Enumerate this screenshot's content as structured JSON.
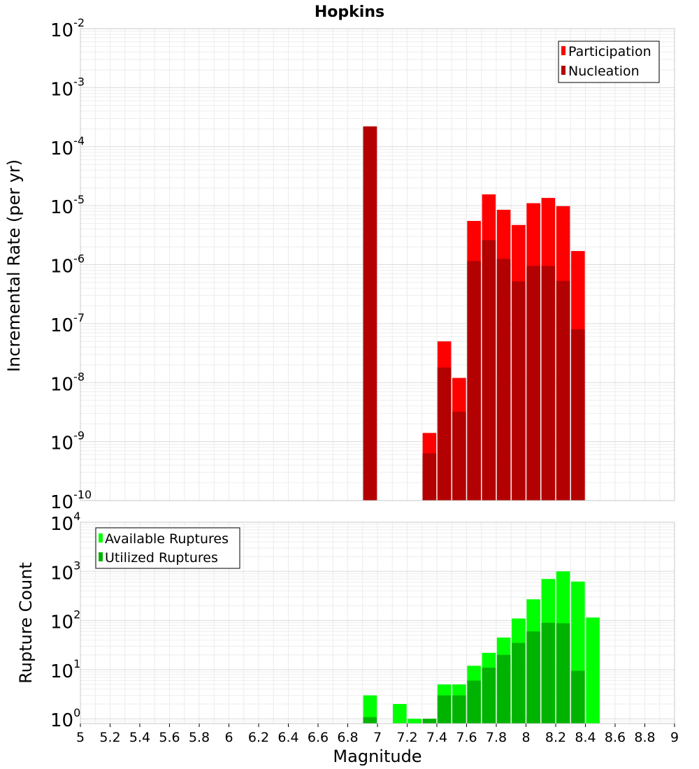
{
  "chart_data": [
    {
      "type": "bar",
      "title": "Hopkins",
      "xlabel": "",
      "ylabel": "Incremental Rate (per yr)",
      "yscale": "log",
      "ylim": [
        1e-10,
        0.01
      ],
      "xlim": [
        5,
        9
      ],
      "grid": true,
      "legend": "top-right",
      "y_ticks": [
        {
          "base": "10",
          "exp": "-10",
          "value": 1e-10
        },
        {
          "base": "10",
          "exp": "-9",
          "value": 1e-09
        },
        {
          "base": "10",
          "exp": "-8",
          "value": 1e-08
        },
        {
          "base": "10",
          "exp": "-7",
          "value": 1e-07
        },
        {
          "base": "10",
          "exp": "-6",
          "value": 1e-06
        },
        {
          "base": "10",
          "exp": "-5",
          "value": 1e-05
        },
        {
          "base": "10",
          "exp": "-4",
          "value": 0.0001
        },
        {
          "base": "10",
          "exp": "-3",
          "value": 0.001
        },
        {
          "base": "10",
          "exp": "-2",
          "value": 0.01
        }
      ],
      "series": [
        {
          "name": "Participation",
          "color": "#ff0000",
          "x": [
            6.95,
            7.35,
            7.45,
            7.55,
            7.65,
            7.75,
            7.85,
            7.95,
            8.05,
            8.15,
            8.25,
            8.35
          ],
          "values": [
            0.00022,
            1.4e-09,
            5e-08,
            1.2e-08,
            5.5e-06,
            1.55e-05,
            8.5e-06,
            4.7e-06,
            1.1e-05,
            1.35e-05,
            9.8e-06,
            1.7e-06
          ]
        },
        {
          "name": "Nucleation",
          "color": "#b30000",
          "x": [
            6.95,
            7.35,
            7.45,
            7.55,
            7.65,
            7.75,
            7.85,
            7.95,
            8.05,
            8.15,
            8.25,
            8.35
          ],
          "values": [
            0.00022,
            6.3e-10,
            1.8e-08,
            3.2e-09,
            1.15e-06,
            2.6e-06,
            1.25e-06,
            5.2e-07,
            9.5e-07,
            9.5e-07,
            5.3e-07,
            8e-08
          ]
        }
      ]
    },
    {
      "type": "bar",
      "title": "",
      "xlabel": "Magnitude",
      "ylabel": "Rupture Count",
      "yscale": "log",
      "ylim": [
        0.8,
        10000
      ],
      "xlim": [
        5,
        9
      ],
      "grid": true,
      "legend": "top-left",
      "x_ticks": [
        "5",
        "5.2",
        "5.4",
        "5.6",
        "5.8",
        "6",
        "6.2",
        "6.4",
        "6.6",
        "6.8",
        "7",
        "7.2",
        "7.4",
        "7.6",
        "7.8",
        "8",
        "8.2",
        "8.4",
        "8.6",
        "8.8",
        "9"
      ],
      "y_ticks": [
        {
          "base": "10",
          "exp": "0",
          "value": 1
        },
        {
          "base": "10",
          "exp": "1",
          "value": 10
        },
        {
          "base": "10",
          "exp": "2",
          "value": 100
        },
        {
          "base": "10",
          "exp": "3",
          "value": 1000
        },
        {
          "base": "10",
          "exp": "4",
          "value": 10000
        }
      ],
      "series": [
        {
          "name": "Available Ruptures",
          "color": "#00ff00",
          "x": [
            6.95,
            7.15,
            7.25,
            7.35,
            7.45,
            7.55,
            7.65,
            7.75,
            7.85,
            7.95,
            8.05,
            8.15,
            8.25,
            8.35,
            8.45
          ],
          "values": [
            3,
            2,
            1,
            1,
            5,
            5,
            12,
            22,
            45,
            110,
            270,
            700,
            1000,
            620,
            115
          ]
        },
        {
          "name": "Utilized Ruptures",
          "color": "#00b300",
          "x": [
            6.95,
            7.35,
            7.45,
            7.55,
            7.65,
            7.75,
            7.85,
            7.95,
            8.05,
            8.15,
            8.25,
            8.35
          ],
          "values": [
            1.08,
            1,
            3,
            3,
            6,
            11,
            20,
            35,
            60,
            90,
            88,
            9.5
          ]
        }
      ]
    }
  ]
}
